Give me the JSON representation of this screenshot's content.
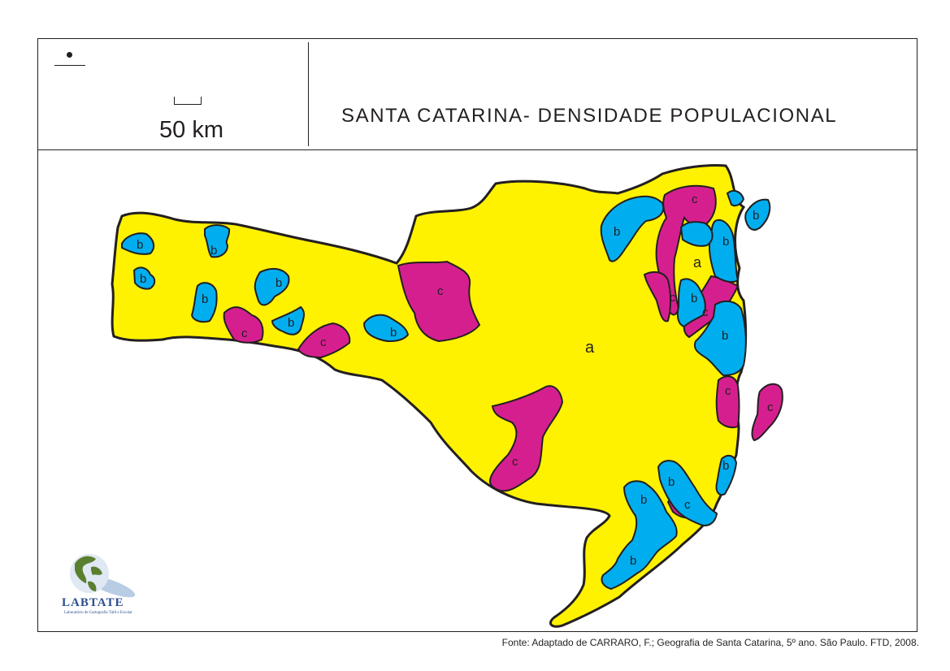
{
  "title": "SANTA CATARINA- DENSIDADE POPULACIONAL",
  "scale_label": "50 km",
  "source": "Fonte: Adaptado de CARRARO, F.; Geografia de Santa Catarina, 5º ano. São Paulo. FTD, 2008.",
  "logo": {
    "name": "LABTATE",
    "subtitle": "Laboratório de Cartografia Tátil e Escolar"
  },
  "colors": {
    "class_a": "#fff200",
    "class_b": "#00aeef",
    "class_c": "#d61f8f",
    "outline": "#231f20"
  },
  "map_labels": {
    "a_main": "a",
    "a_north": "a",
    "b": "b",
    "c": "c"
  }
}
